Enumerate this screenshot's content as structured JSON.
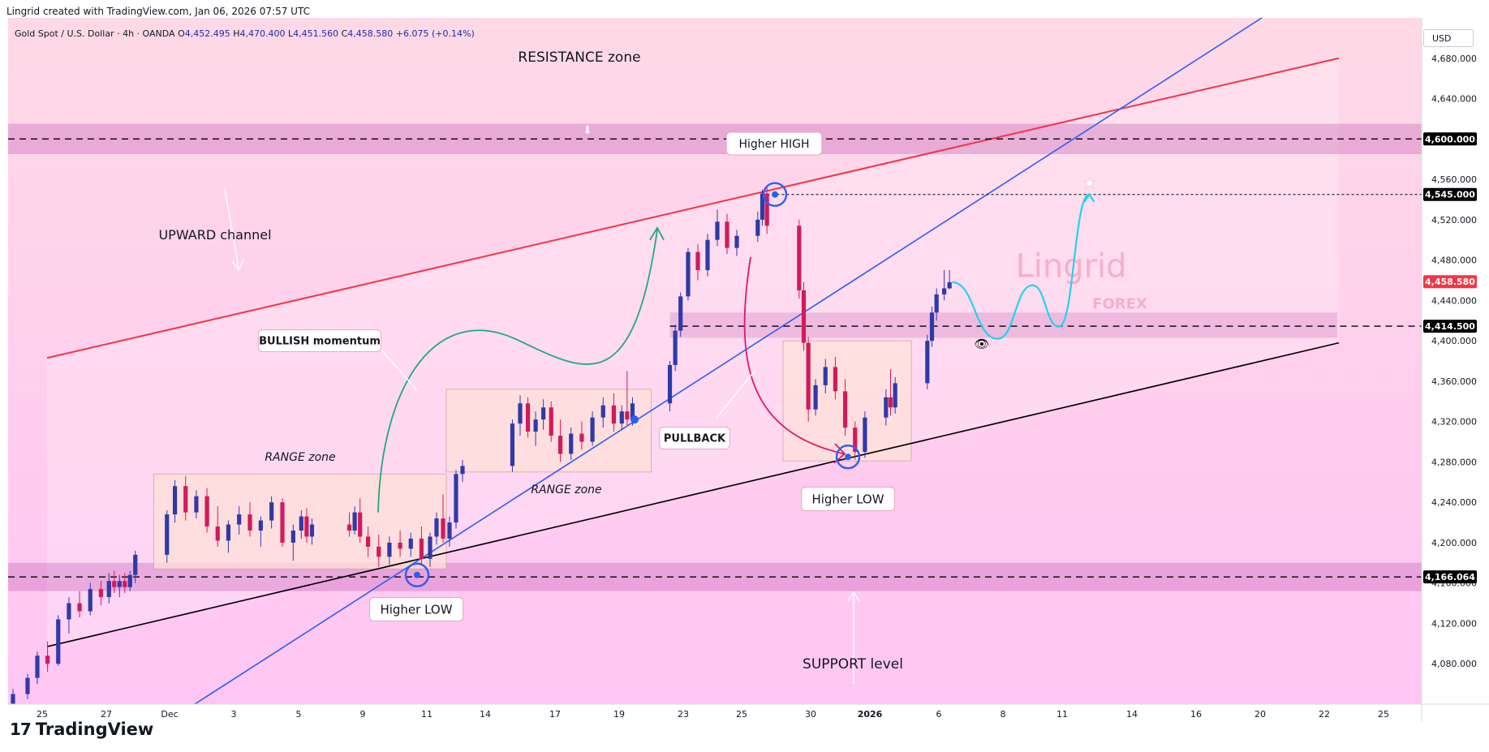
{
  "header": {
    "attribution": "Lingrid created with TradingView.com, Jan 06, 2026 07:57 UTC"
  },
  "brand": {
    "logo_mark": "17",
    "name": "TradingView"
  },
  "scale": {
    "currency_label": "USD"
  },
  "colors": {
    "up_candle": "#2f3aa8",
    "down_candle": "#d11a5b",
    "channel_upper": "#f2344a",
    "trend_blue": "#2b5ff0",
    "channel_lower": "#000000",
    "projection": "#22d3ee",
    "bullish_arrow": "#22a87a",
    "pullback_arrow": "#e0156e"
  },
  "watermark": {
    "name": "Lingrid",
    "sub": "FOREX"
  },
  "chart_data": {
    "type": "candlestick",
    "symbol": "Gold Spot / U.S. Dollar",
    "timeframe": "4h",
    "broker": "OANDA",
    "ohlc": {
      "open": "4,452.495",
      "high": "4,470.400",
      "low": "4,451.560",
      "close": "4,458.580",
      "change": "+6.075",
      "change_pct": "(+0.14%)"
    },
    "ylim": [
      4040,
      4720
    ],
    "y_ticks": [
      4080,
      4120,
      4160,
      4200,
      4240,
      4280,
      4320,
      4360,
      4400,
      4440,
      4480,
      4520,
      4560,
      4640,
      4680
    ],
    "y_tick_labels": [
      "4,080.000",
      "4,120.000",
      "4,160.000",
      "4,200.000",
      "4,240.000",
      "4,280.000",
      "4,320.000",
      "4,360.000",
      "4,400.000",
      "4,440.000",
      "4,480.000",
      "4,520.000",
      "4,560.000",
      "4,640.000",
      "4,680.000"
    ],
    "x_ticks": [
      {
        "date": "2025-11-25",
        "label": "25"
      },
      {
        "date": "2025-11-27",
        "label": "27"
      },
      {
        "date": "2025-12-01",
        "label": "Dec"
      },
      {
        "date": "2025-12-03",
        "label": "3"
      },
      {
        "date": "2025-12-05",
        "label": "5"
      },
      {
        "date": "2025-12-09",
        "label": "9"
      },
      {
        "date": "2025-12-11",
        "label": "11"
      },
      {
        "date": "2025-12-14",
        "label": "14"
      },
      {
        "date": "2025-12-17",
        "label": "17"
      },
      {
        "date": "2025-12-19",
        "label": "19"
      },
      {
        "date": "2025-12-23",
        "label": "23"
      },
      {
        "date": "2025-12-25",
        "label": "25"
      },
      {
        "date": "2025-12-30",
        "label": "30"
      },
      {
        "date": "2026-01-01",
        "label": "2026"
      },
      {
        "date": "2026-01-06",
        "label": "6"
      },
      {
        "date": "2026-01-08",
        "label": "8"
      },
      {
        "date": "2026-01-11",
        "label": "11"
      },
      {
        "date": "2026-01-14",
        "label": "14"
      },
      {
        "date": "2026-01-16",
        "label": "16"
      },
      {
        "date": "2026-01-20",
        "label": "20"
      },
      {
        "date": "2026-01-22",
        "label": "22"
      },
      {
        "date": "2026-01-25",
        "label": "25"
      }
    ],
    "price_tags": [
      {
        "value": 4600.0,
        "label": "4,600.000",
        "color": "#000000"
      },
      {
        "value": 4545.0,
        "label": "4,545.000",
        "color": "#000000"
      },
      {
        "value": 4458.58,
        "label": "4,458.580",
        "color": "#f23645"
      },
      {
        "value": 4414.5,
        "label": "4,414.500",
        "color": "#000000"
      },
      {
        "value": 4166.064,
        "label": "4,166.064",
        "color": "#000000"
      }
    ],
    "horizontal_levels": [
      4600.0,
      4545.0,
      4414.5,
      4166.064
    ],
    "zones": [
      {
        "label": "RESISTANCE zone",
        "low": 4585,
        "high": 4615
      },
      {
        "label": "SUPPORT level",
        "low": 4152,
        "high": 4180
      },
      {
        "label": "",
        "low": 4403,
        "high": 4428
      }
    ],
    "range_boxes": [
      {
        "label": "RANGE zone",
        "x_start": "2025-11-30",
        "x_end": "2025-12-12",
        "low": 4174,
        "high": 4268
      },
      {
        "label": "RANGE zone",
        "x_start": "2025-12-12",
        "x_end": "2025-12-21",
        "low": 4270,
        "high": 4352
      },
      {
        "label": "",
        "x_start": "2025-12-28",
        "x_end": "2026-01-04",
        "low": 4281,
        "high": 4400
      }
    ],
    "annotations": [
      "RESISTANCE zone",
      "UPWARD channel",
      "BULLISH momentum",
      "RANGE zone",
      "RANGE zone",
      "Higher HIGH",
      "PULLBACK",
      "Higher LOW",
      "Higher LOW",
      "SUPPORT level"
    ],
    "candles": [
      [
        "2025-11-24T00",
        4040,
        4055,
        4036,
        4050
      ],
      [
        "2025-11-24T12",
        4050,
        4070,
        4045,
        4066
      ],
      [
        "2025-11-24T20",
        4066,
        4092,
        4060,
        4088
      ],
      [
        "2025-11-25T04",
        4088,
        4102,
        4072,
        4080
      ],
      [
        "2025-11-25T12",
        4080,
        4128,
        4078,
        4124
      ],
      [
        "2025-11-25T20",
        4124,
        4146,
        4110,
        4140
      ],
      [
        "2025-11-26T04",
        4140,
        4152,
        4126,
        4132
      ],
      [
        "2025-11-26T12",
        4132,
        4160,
        4128,
        4154
      ],
      [
        "2025-11-26T20",
        4154,
        4162,
        4138,
        4146
      ],
      [
        "2025-11-27T04",
        4146,
        4170,
        4140,
        4162
      ],
      [
        "2025-11-27T12",
        4162,
        4172,
        4150,
        4156
      ],
      [
        "2025-11-27T20",
        4156,
        4168,
        4146,
        4162
      ],
      [
        "2025-11-28T04",
        4162,
        4170,
        4150,
        4156
      ],
      [
        "2025-11-28T12",
        4156,
        4172,
        4152,
        4168
      ],
      [
        "2025-11-28T20",
        4168,
        4192,
        4160,
        4188
      ],
      [
        "2025-11-30T20",
        4188,
        4232,
        4180,
        4228
      ],
      [
        "2025-12-01T04",
        4228,
        4262,
        4220,
        4256
      ],
      [
        "2025-12-01T12",
        4256,
        4266,
        4222,
        4230
      ],
      [
        "2025-12-01T20",
        4230,
        4252,
        4224,
        4246
      ],
      [
        "2025-12-02T04",
        4246,
        4254,
        4210,
        4216
      ],
      [
        "2025-12-02T12",
        4216,
        4236,
        4196,
        4202
      ],
      [
        "2025-12-02T20",
        4202,
        4222,
        4190,
        4218
      ],
      [
        "2025-12-03T04",
        4218,
        4236,
        4208,
        4228
      ],
      [
        "2025-12-03T12",
        4228,
        4240,
        4206,
        4212
      ],
      [
        "2025-12-03T20",
        4212,
        4226,
        4196,
        4222
      ],
      [
        "2025-12-04T04",
        4222,
        4246,
        4214,
        4240
      ],
      [
        "2025-12-04T12",
        4240,
        4244,
        4196,
        4200
      ],
      [
        "2025-12-04T20",
        4200,
        4218,
        4182,
        4212
      ],
      [
        "2025-12-05T04",
        4212,
        4232,
        4204,
        4226
      ],
      [
        "2025-12-05T12",
        4226,
        4234,
        4200,
        4206
      ],
      [
        "2025-12-05T20",
        4206,
        4224,
        4198,
        4218
      ],
      [
        "2025-12-08T04",
        4218,
        4230,
        4206,
        4212
      ],
      [
        "2025-12-08T12",
        4212,
        4236,
        4208,
        4230
      ],
      [
        "2025-12-08T20",
        4230,
        4244,
        4200,
        4206
      ],
      [
        "2025-12-09T04",
        4206,
        4216,
        4186,
        4196
      ],
      [
        "2025-12-09T12",
        4196,
        4208,
        4176,
        4186
      ],
      [
        "2025-12-09T20",
        4186,
        4206,
        4178,
        4200
      ],
      [
        "2025-12-10T04",
        4200,
        4212,
        4186,
        4194
      ],
      [
        "2025-12-10T12",
        4194,
        4210,
        4186,
        4204
      ],
      [
        "2025-12-10T20",
        4204,
        4216,
        4178,
        4184
      ],
      [
        "2025-12-11T04",
        4184,
        4210,
        4176,
        4206
      ],
      [
        "2025-12-11T12",
        4206,
        4230,
        4198,
        4224
      ],
      [
        "2025-12-11T20",
        4224,
        4248,
        4200,
        4204
      ],
      [
        "2025-12-12T04",
        4204,
        4226,
        4196,
        4220
      ],
      [
        "2025-12-12T12",
        4220,
        4272,
        4214,
        4268
      ],
      [
        "2025-12-12T20",
        4268,
        4282,
        4260,
        4276
      ],
      [
        "2025-12-15T04",
        4276,
        4322,
        4270,
        4318
      ],
      [
        "2025-12-15T12",
        4318,
        4346,
        4306,
        4338
      ],
      [
        "2025-12-15T20",
        4338,
        4344,
        4304,
        4310
      ],
      [
        "2025-12-16T04",
        4310,
        4330,
        4296,
        4322
      ],
      [
        "2025-12-16T12",
        4322,
        4342,
        4312,
        4334
      ],
      [
        "2025-12-16T20",
        4334,
        4340,
        4300,
        4306
      ],
      [
        "2025-12-17T04",
        4306,
        4322,
        4280,
        4288
      ],
      [
        "2025-12-17T12",
        4288,
        4314,
        4282,
        4308
      ],
      [
        "2025-12-17T20",
        4308,
        4320,
        4292,
        4300
      ],
      [
        "2025-12-18T04",
        4300,
        4330,
        4296,
        4324
      ],
      [
        "2025-12-18T12",
        4324,
        4344,
        4314,
        4336
      ],
      [
        "2025-12-18T20",
        4336,
        4348,
        4310,
        4318
      ],
      [
        "2025-12-19T04",
        4318,
        4336,
        4312,
        4330
      ],
      [
        "2025-12-19T12",
        4330,
        4370,
        4316,
        4322
      ],
      [
        "2025-12-19T20",
        4322,
        4344,
        4316,
        4338
      ],
      [
        "2025-12-22T04",
        4338,
        4380,
        4330,
        4376
      ],
      [
        "2025-12-22T12",
        4376,
        4416,
        4370,
        4410
      ],
      [
        "2025-12-22T20",
        4410,
        4448,
        4404,
        4444
      ],
      [
        "2025-12-23T04",
        4444,
        4492,
        4440,
        4488
      ],
      [
        "2025-12-23T12",
        4488,
        4496,
        4460,
        4470
      ],
      [
        "2025-12-23T20",
        4470,
        4506,
        4464,
        4500
      ],
      [
        "2025-12-24T04",
        4500,
        4530,
        4494,
        4518
      ],
      [
        "2025-12-24T12",
        4518,
        4526,
        4486,
        4492
      ],
      [
        "2025-12-24T20",
        4492,
        4510,
        4484,
        4504
      ],
      [
        "2025-12-26T04",
        4504,
        4528,
        4498,
        4520
      ],
      [
        "2025-12-26T12",
        4520,
        4550,
        4514,
        4546
      ],
      [
        "2025-12-26T20",
        4546,
        4552,
        4506,
        4514
      ],
      [
        "2025-12-29T04",
        4514,
        4520,
        4442,
        4450
      ],
      [
        "2025-12-29T12",
        4450,
        4458,
        4390,
        4398
      ],
      [
        "2025-12-29T20",
        4398,
        4404,
        4320,
        4332
      ],
      [
        "2025-12-30T04",
        4332,
        4362,
        4326,
        4356
      ],
      [
        "2025-12-30T12",
        4356,
        4382,
        4348,
        4374
      ],
      [
        "2025-12-30T20",
        4374,
        4384,
        4342,
        4350
      ],
      [
        "2025-12-31T04",
        4350,
        4362,
        4306,
        4314
      ],
      [
        "2025-12-31T12",
        4314,
        4320,
        4282,
        4290
      ],
      [
        "2025-12-31T20",
        4290,
        4330,
        4284,
        4324
      ],
      [
        "2026-01-02T04",
        4324,
        4352,
        4316,
        4344
      ],
      [
        "2026-01-02T12",
        4344,
        4372,
        4326,
        4334
      ],
      [
        "2026-01-02T20",
        4334,
        4364,
        4328,
        4358
      ],
      [
        "2026-01-05T04",
        4358,
        4406,
        4352,
        4400
      ],
      [
        "2026-01-05T12",
        4400,
        4434,
        4394,
        4428
      ],
      [
        "2026-01-05T20",
        4428,
        4452,
        4420,
        4446
      ],
      [
        "2026-01-06T04",
        4446,
        4470,
        4440,
        4452
      ],
      [
        "2026-01-06T08",
        4452,
        4470,
        4451,
        4458
      ]
    ],
    "projection_path": [
      [
        "2026-01-06T10",
        4458
      ],
      [
        "2026-01-07T20",
        4402
      ],
      [
        "2026-01-09T12",
        4455
      ],
      [
        "2026-01-10T20",
        4414
      ],
      [
        "2026-01-12T04",
        4545
      ]
    ]
  }
}
